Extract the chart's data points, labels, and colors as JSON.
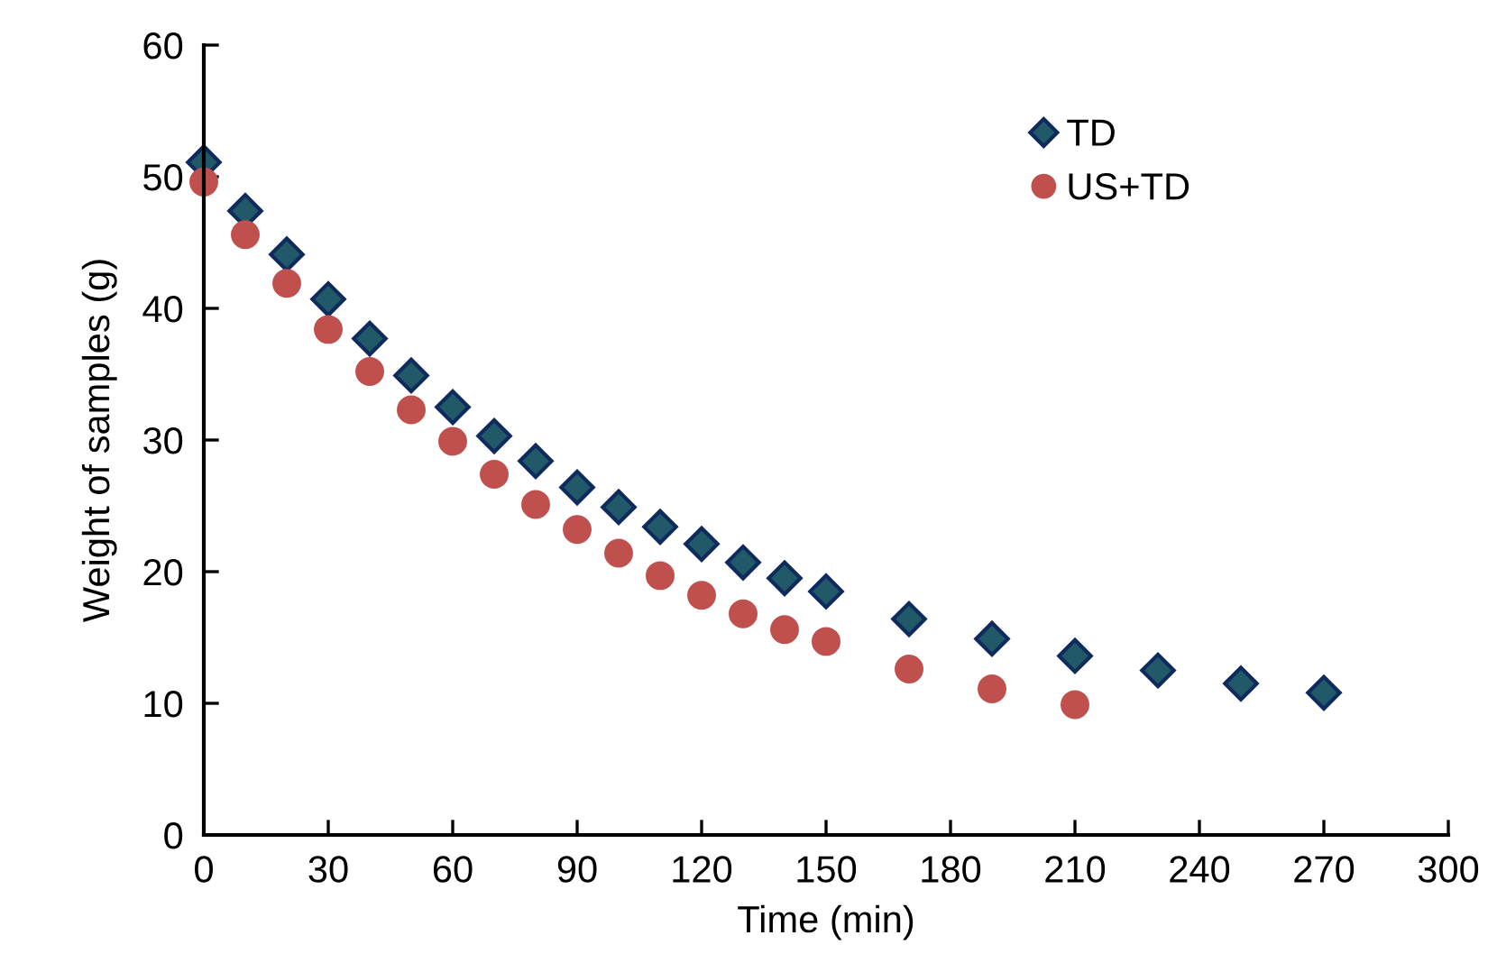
{
  "chart_data": {
    "type": "scatter",
    "xlabel": "Time (min)",
    "ylabel": "Weight of samples (g)",
    "xlim": [
      0,
      300
    ],
    "xticks": [
      0,
      30,
      60,
      90,
      120,
      150,
      180,
      210,
      240,
      270,
      300
    ],
    "ylim": [
      0,
      60
    ],
    "yticks": [
      0,
      10,
      20,
      30,
      40,
      50,
      60
    ],
    "grid": false,
    "legend": "top right",
    "series": [
      {
        "name": "TD",
        "color": "#215968",
        "marker": "diamond",
        "x": [
          0,
          10,
          20,
          30,
          40,
          50,
          60,
          70,
          80,
          90,
          100,
          110,
          120,
          130,
          140,
          150,
          170,
          190,
          210,
          230,
          250,
          270
        ],
        "values": [
          51.1,
          47.4,
          44.1,
          40.7,
          37.7,
          34.9,
          32.5,
          30.3,
          28.4,
          26.4,
          24.9,
          23.4,
          22.1,
          20.7,
          19.5,
          18.5,
          16.4,
          14.9,
          13.6,
          12.5,
          11.5,
          10.8
        ]
      },
      {
        "name": "US+TD",
        "color": "#c0504d",
        "marker": "circle",
        "x": [
          0,
          10,
          20,
          30,
          40,
          50,
          60,
          70,
          80,
          90,
          100,
          110,
          120,
          130,
          140,
          150,
          170,
          190,
          210
        ],
        "values": [
          49.6,
          45.6,
          41.9,
          38.4,
          35.2,
          32.3,
          29.9,
          27.4,
          25.1,
          23.2,
          21.4,
          19.7,
          18.2,
          16.8,
          15.6,
          14.7,
          12.6,
          11.1,
          9.9
        ]
      }
    ]
  }
}
